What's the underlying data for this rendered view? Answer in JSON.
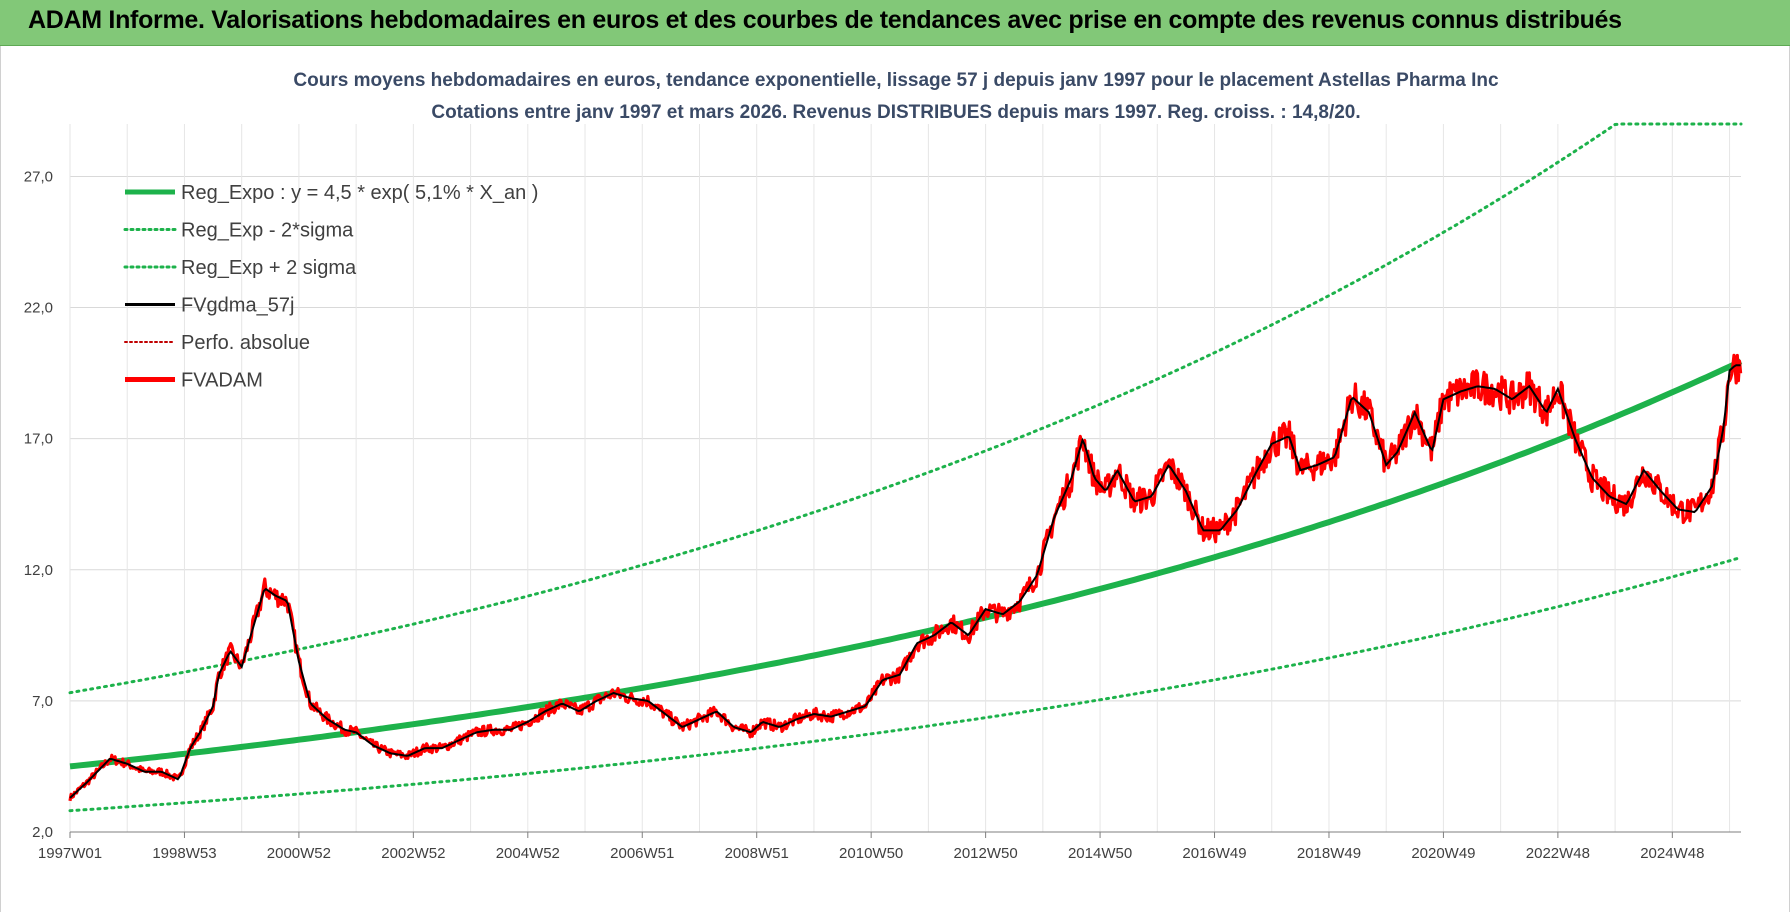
{
  "banner": {
    "title": "ADAM Informe. Valorisations hebdomadaires en euros et des courbes de tendances avec prise en compte des revenus connus distribués"
  },
  "chart_data": {
    "type": "line",
    "title": "Cours moyens hebdomadaires en euros, tendance exponentielle, lissage 57 j depuis janv 1997 pour le placement Astellas Pharma Inc",
    "subtitle": "Cotations entre janv 1997 et mars 2026. Revenus DISTRIBUES depuis mars 1997. Reg. croiss. : 14,8/20.",
    "x_ticks": [
      "1997W01",
      "1998W53",
      "2000W52",
      "2002W52",
      "2004W52",
      "2006W51",
      "2008W51",
      "2010W50",
      "2012W50",
      "2014W50",
      "2016W49",
      "2018W49",
      "2020W49",
      "2022W48",
      "2024W48"
    ],
    "x_range": [
      1997.0,
      2026.2
    ],
    "y_ticks": [
      "2,0",
      "7,0",
      "12,0",
      "17,0",
      "22,0",
      "27,0"
    ],
    "ylim": [
      2,
      29
    ],
    "grid": true,
    "legend_position": "top-left",
    "colors": {
      "trend": "#1db24b",
      "fvgdma": "#000000",
      "perfo": "#c00000",
      "fvadam": "#ff0000"
    },
    "trend": {
      "a": 4.5,
      "rate": 0.051,
      "lower_factor": 0.625,
      "upper_factor": 1.625,
      "upper_cap": 29.0
    },
    "series": [
      {
        "name": "Reg_Expo : y = 4,5 * exp( 5,1% *  X_an )",
        "style": "trend"
      },
      {
        "name": "Reg_Exp - 2*sigma",
        "style": "trend-dotted"
      },
      {
        "name": "Reg_Exp + 2 sigma",
        "style": "trend-dotted"
      },
      {
        "name": "FVgdma_57j",
        "style": "smooth"
      },
      {
        "name": "Perfo. absolue",
        "style": "perfo-dotted"
      },
      {
        "name": "FVADAM",
        "style": "price",
        "x": [
          1997.0,
          1997.3,
          1997.7,
          1998.0,
          1998.3,
          1998.6,
          1998.9,
          1999.1,
          1999.3,
          1999.5,
          1999.6,
          1999.8,
          2000.0,
          2000.2,
          2000.4,
          2000.6,
          2000.8,
          2001.0,
          2001.2,
          2001.5,
          2001.8,
          2002.0,
          2002.3,
          2002.6,
          2002.9,
          2003.2,
          2003.5,
          2003.8,
          2004.1,
          2004.4,
          2004.7,
          2005.0,
          2005.3,
          2005.6,
          2005.9,
          2006.2,
          2006.5,
          2006.8,
          2007.1,
          2007.4,
          2007.7,
          2008.0,
          2008.3,
          2008.6,
          2008.9,
          2009.1,
          2009.4,
          2009.7,
          2010.0,
          2010.3,
          2010.6,
          2010.9,
          2011.2,
          2011.5,
          2011.8,
          2012.1,
          2012.4,
          2012.7,
          2013.0,
          2013.3,
          2013.6,
          2013.9,
          2014.2,
          2014.5,
          2014.7,
          2014.9,
          2015.1,
          2015.3,
          2015.6,
          2015.9,
          2016.2,
          2016.5,
          2016.8,
          2017.1,
          2017.4,
          2017.7,
          2018.0,
          2018.3,
          2018.5,
          2018.8,
          2019.1,
          2019.4,
          2019.7,
          2020.0,
          2020.2,
          2020.5,
          2020.8,
          2021.0,
          2021.3,
          2021.6,
          2021.9,
          2022.2,
          2022.5,
          2022.8,
          2023.0,
          2023.3,
          2023.6,
          2023.9,
          2024.2,
          2024.5,
          2024.8,
          2025.1,
          2025.4,
          2025.7,
          2025.9,
          2026.0,
          2026.1
        ],
        "values": [
          3.3,
          3.9,
          4.8,
          4.6,
          4.3,
          4.3,
          4.0,
          5.2,
          5.9,
          6.8,
          8.0,
          8.9,
          8.3,
          9.8,
          11.3,
          11.0,
          10.8,
          8.5,
          6.9,
          6.3,
          5.9,
          5.8,
          5.3,
          5.0,
          4.9,
          5.2,
          5.2,
          5.5,
          5.8,
          5.9,
          5.9,
          6.2,
          6.6,
          6.9,
          6.6,
          7.0,
          7.3,
          7.1,
          7.0,
          6.5,
          6.0,
          6.3,
          6.6,
          6.0,
          5.8,
          6.2,
          6.0,
          6.3,
          6.5,
          6.4,
          6.6,
          6.8,
          7.8,
          8.0,
          9.2,
          9.5,
          10.0,
          9.5,
          10.5,
          10.3,
          10.8,
          11.8,
          14.0,
          15.5,
          17.0,
          15.5,
          15.0,
          15.8,
          14.6,
          14.8,
          16.0,
          15.0,
          13.5,
          13.5,
          14.3,
          15.6,
          16.8,
          17.1,
          15.8,
          16.0,
          16.3,
          18.6,
          18.0,
          16.0,
          16.5,
          18.0,
          16.5,
          18.5,
          18.8,
          19.0,
          18.9,
          18.5,
          19.0,
          18.0,
          18.9,
          17.0,
          15.5,
          14.8,
          14.5,
          15.8,
          15.0,
          14.3,
          14.2,
          15.2,
          17.5,
          19.6,
          19.8
        ]
      }
    ]
  }
}
